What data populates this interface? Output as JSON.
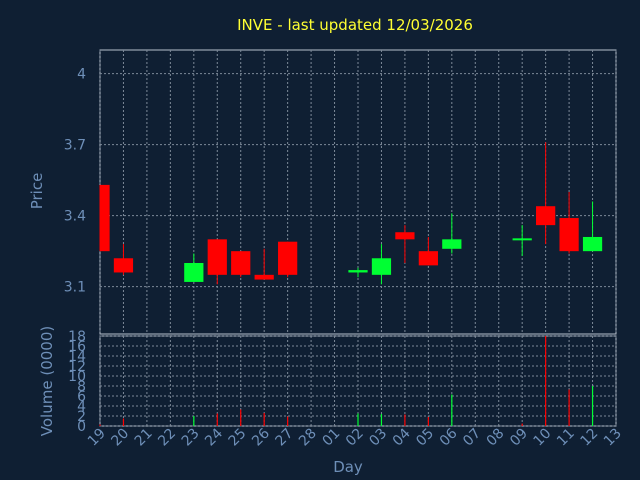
{
  "colors": {
    "background": "#0f1f33",
    "plot_background": "#0f1f33",
    "grid": "#7d8a99",
    "frame": "#b7c0cc",
    "title": "#ffff33",
    "tick_text": "#6e8fb8",
    "up": "#00ff33",
    "down": "#ff0000"
  },
  "chart_data": [
    {
      "type": "candlestick",
      "title": "INVE - last updated 12/03/2026",
      "ylabel": "Price",
      "xlabel": "",
      "ylim": [
        2.9,
        4.1
      ],
      "yticks": [
        3.1,
        3.4,
        3.7,
        4
      ],
      "ytick_labels": [
        "3.1",
        "3.4",
        "3.7",
        "4"
      ],
      "grid": true,
      "categories": [
        "19",
        "20",
        "21",
        "22",
        "23",
        "24",
        "25",
        "26",
        "27",
        "28",
        "01",
        "02",
        "03",
        "04",
        "05",
        "06",
        "07",
        "08",
        "09",
        "10",
        "11",
        "12",
        "13"
      ],
      "candles": [
        {
          "x": "19",
          "open": 3.53,
          "close": 3.25,
          "high": 3.53,
          "low": 3.25
        },
        {
          "x": "20",
          "open": 3.22,
          "close": 3.16,
          "high": 3.28,
          "low": 3.15
        },
        {
          "x": "23",
          "open": 3.12,
          "close": 3.2,
          "high": 3.24,
          "low": 3.12
        },
        {
          "x": "24",
          "open": 3.3,
          "close": 3.15,
          "high": 3.3,
          "low": 3.11
        },
        {
          "x": "25",
          "open": 3.25,
          "close": 3.15,
          "high": 3.25,
          "low": 3.14
        },
        {
          "x": "26",
          "open": 3.15,
          "close": 3.13,
          "high": 3.26,
          "low": 3.13
        },
        {
          "x": "27",
          "open": 3.29,
          "close": 3.15,
          "high": 3.29,
          "low": 3.14
        },
        {
          "x": "02",
          "open": 3.16,
          "close": 3.17,
          "high": 3.18,
          "low": 3.14
        },
        {
          "x": "03",
          "open": 3.15,
          "close": 3.22,
          "high": 3.28,
          "low": 3.11
        },
        {
          "x": "04",
          "open": 3.33,
          "close": 3.3,
          "high": 3.36,
          "low": 3.2
        },
        {
          "x": "05",
          "open": 3.25,
          "close": 3.19,
          "high": 3.31,
          "low": 3.19
        },
        {
          "x": "06",
          "open": 3.26,
          "close": 3.3,
          "high": 3.41,
          "low": 3.24
        },
        {
          "x": "09",
          "open": 3.3,
          "close": 3.3,
          "high": 3.36,
          "low": 3.23
        },
        {
          "x": "10",
          "open": 3.44,
          "close": 3.36,
          "high": 3.71,
          "low": 3.28
        },
        {
          "x": "11",
          "open": 3.39,
          "close": 3.25,
          "high": 3.5,
          "low": 3.24
        },
        {
          "x": "12",
          "open": 3.25,
          "close": 3.31,
          "high": 3.46,
          "low": 3.25
        }
      ]
    },
    {
      "type": "bar",
      "ylabel": "Volume (0000)",
      "xlabel": "Day",
      "ylim": [
        0,
        18
      ],
      "yticks": [
        0,
        2,
        4,
        6,
        8,
        10,
        12,
        14,
        16,
        18
      ],
      "ytick_labels": [
        "0",
        "2",
        "4",
        "6",
        "8",
        "10",
        "12",
        "14",
        "16",
        "18"
      ],
      "grid": true,
      "categories": [
        "19",
        "20",
        "21",
        "22",
        "23",
        "24",
        "25",
        "26",
        "27",
        "28",
        "01",
        "02",
        "03",
        "04",
        "05",
        "06",
        "07",
        "08",
        "09",
        "10",
        "11",
        "12",
        "13"
      ],
      "bars": [
        {
          "x": "19",
          "value": 0.3,
          "direction": "down"
        },
        {
          "x": "20",
          "value": 1.5,
          "direction": "down"
        },
        {
          "x": "23",
          "value": 2.0,
          "direction": "up"
        },
        {
          "x": "24",
          "value": 2.5,
          "direction": "down"
        },
        {
          "x": "25",
          "value": 3.3,
          "direction": "down"
        },
        {
          "x": "26",
          "value": 2.6,
          "direction": "down"
        },
        {
          "x": "27",
          "value": 1.9,
          "direction": "down"
        },
        {
          "x": "02",
          "value": 2.5,
          "direction": "up"
        },
        {
          "x": "03",
          "value": 2.4,
          "direction": "up"
        },
        {
          "x": "04",
          "value": 2.3,
          "direction": "down"
        },
        {
          "x": "05",
          "value": 1.8,
          "direction": "down"
        },
        {
          "x": "06",
          "value": 6.3,
          "direction": "up"
        },
        {
          "x": "09",
          "value": 0.5,
          "direction": "down"
        },
        {
          "x": "10",
          "value": 18.0,
          "direction": "down"
        },
        {
          "x": "11",
          "value": 7.3,
          "direction": "down"
        },
        {
          "x": "12",
          "value": 8.0,
          "direction": "up"
        }
      ]
    }
  ]
}
